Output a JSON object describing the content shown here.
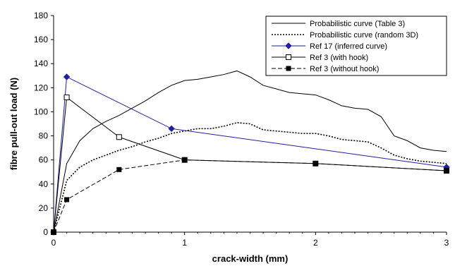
{
  "chart_data": {
    "type": "line",
    "xlabel": "crack-width (mm)",
    "ylabel": "fibre pull-out load (N)",
    "xlim": [
      0,
      3
    ],
    "ylim": [
      0,
      180
    ],
    "xticks": [
      0,
      1,
      2,
      3
    ],
    "yticks": [
      0,
      20,
      40,
      60,
      80,
      100,
      120,
      140,
      160,
      180
    ],
    "grid": false,
    "legend_position": "top-right",
    "series": [
      {
        "name": "Probabilistic curve (Table 3)",
        "color": "#000000",
        "dash": "solid",
        "marker": "none",
        "x": [
          0,
          0.1,
          0.2,
          0.3,
          0.4,
          0.5,
          0.6,
          0.7,
          0.8,
          0.9,
          1.0,
          1.1,
          1.2,
          1.3,
          1.4,
          1.5,
          1.6,
          1.7,
          1.8,
          1.9,
          2.0,
          2.1,
          2.2,
          2.3,
          2.4,
          2.5,
          2.6,
          2.7,
          2.8,
          2.9,
          3.0
        ],
        "y": [
          0,
          57,
          76,
          86,
          92,
          97,
          103,
          109,
          116,
          122,
          126,
          127,
          129,
          131,
          134,
          129,
          122,
          119,
          116,
          115,
          114,
          110,
          105,
          103,
          102,
          96,
          80,
          76,
          70,
          68,
          67
        ]
      },
      {
        "name": "Probabilistic curve (random 3D)",
        "color": "#000000",
        "dash": "dotted",
        "marker": "none",
        "x": [
          0,
          0.1,
          0.2,
          0.3,
          0.4,
          0.5,
          0.6,
          0.7,
          0.8,
          0.9,
          1.0,
          1.1,
          1.2,
          1.3,
          1.4,
          1.5,
          1.6,
          1.7,
          1.8,
          1.9,
          2.0,
          2.1,
          2.2,
          2.3,
          2.4,
          2.5,
          2.6,
          2.7,
          2.8,
          2.9,
          3.0
        ],
        "y": [
          0,
          43,
          54,
          60,
          64,
          68,
          71,
          75,
          78,
          82,
          84,
          86,
          86,
          88,
          91,
          90,
          85,
          84,
          83,
          82,
          82,
          80,
          77,
          76,
          75,
          70,
          64,
          61,
          59,
          58,
          57
        ]
      },
      {
        "name": "Ref 17 (inferred curve)",
        "color": "#1f1fa0",
        "dash": "solid",
        "marker": "diamond",
        "x": [
          0,
          0.1,
          0.9,
          3.0
        ],
        "y": [
          0,
          129,
          86,
          54
        ]
      },
      {
        "name": "Ref 3 (with hook)",
        "color": "#000000",
        "dash": "solid",
        "marker": "open-square",
        "x": [
          0,
          0.1,
          0.5,
          1.0,
          2.0,
          3.0
        ],
        "y": [
          0,
          112,
          79,
          60,
          57,
          51
        ]
      },
      {
        "name": "Ref 3 (without hook)",
        "color": "#000000",
        "dash": "dashed",
        "marker": "filled-square",
        "x": [
          0,
          0.1,
          0.5,
          1.0,
          2.0,
          3.0
        ],
        "y": [
          0,
          27,
          52,
          60,
          57,
          51
        ]
      }
    ]
  }
}
